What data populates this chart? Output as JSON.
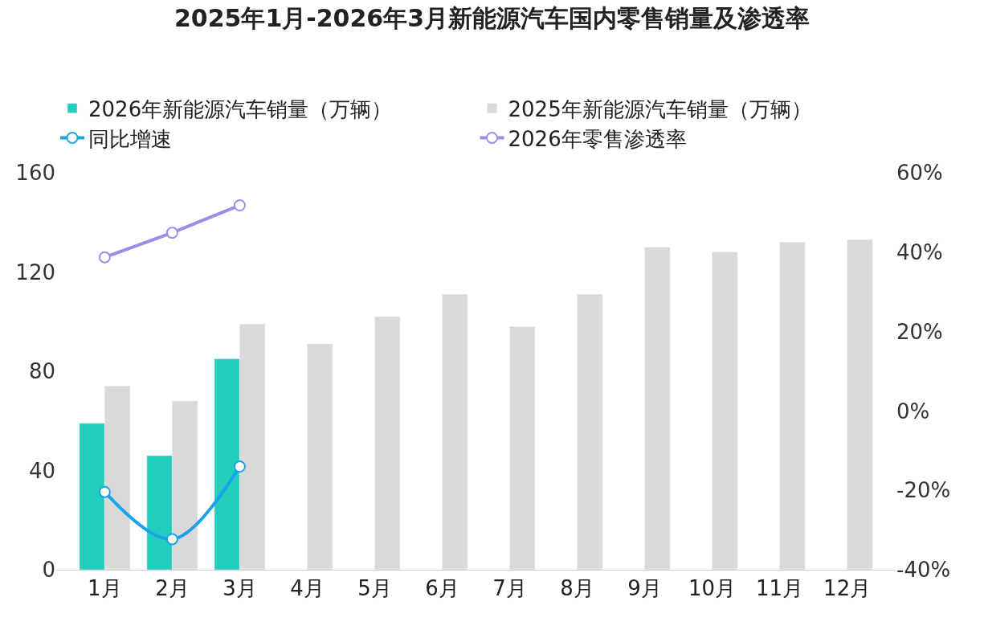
{
  "chart_data": {
    "type": "bar",
    "title": "2025年1月-2026年3月新能源汽车国内零售销量及渗透率",
    "categories": [
      "1月",
      "2月",
      "3月",
      "4月",
      "5月",
      "6月",
      "7月",
      "8月",
      "9月",
      "10月",
      "11月",
      "12月"
    ],
    "series": [
      {
        "name": "2026年新能源汽车销量（万辆）",
        "color": "#22cdbd",
        "values": [
          59,
          46,
          85,
          null,
          null,
          null,
          null,
          null,
          null,
          null,
          null,
          null
        ]
      },
      {
        "name": "2025年新能源汽车销量（万辆）",
        "color": "#d9d9d9",
        "values": [
          74,
          68,
          99,
          91,
          102,
          111,
          98,
          111,
          130,
          128,
          132,
          133
        ]
      },
      {
        "name": "同比增速",
        "type": "line",
        "axis": "y2",
        "color": "#1aa3e8",
        "marker": "circle",
        "values": [
          -20.4,
          -32.3,
          -14,
          null,
          null,
          null,
          null,
          null,
          null,
          null,
          null,
          null
        ]
      },
      {
        "name": "2026年零售渗透率",
        "type": "line",
        "axis": "y2",
        "color": "#9b8de8",
        "marker": "circle",
        "values": [
          38.7,
          44.9,
          51.8,
          null,
          null,
          null,
          null,
          null,
          null,
          null,
          null,
          null
        ]
      }
    ],
    "ylim": [
      0,
      160
    ],
    "yticks": [
      0,
      40,
      80,
      120,
      160
    ],
    "y2lim": [
      -40,
      60
    ],
    "y2ticks": [
      {
        "value": -40,
        "label": "-40%"
      },
      {
        "value": -20,
        "label": "-20%"
      },
      {
        "value": 0,
        "label": "0%"
      },
      {
        "value": 20,
        "label": "20%"
      },
      {
        "value": 40,
        "label": "40%"
      },
      {
        "value": 60,
        "label": "60%"
      }
    ],
    "legend": "top"
  }
}
